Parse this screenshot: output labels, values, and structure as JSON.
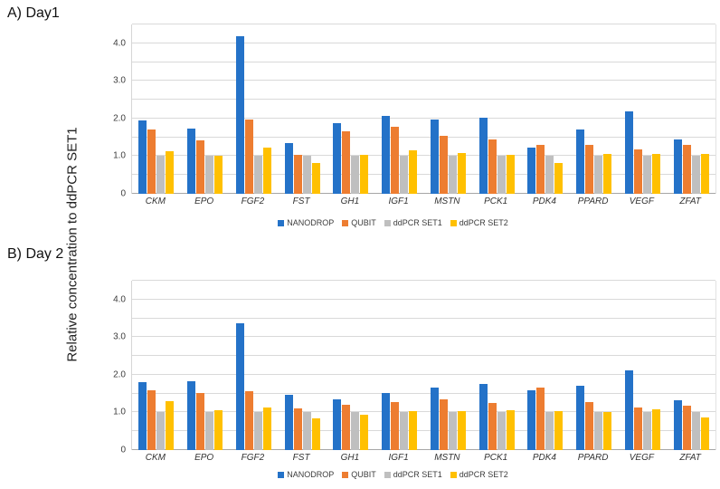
{
  "figure": {
    "y_axis_label": "Relative concentration to ddPCR SET1"
  },
  "colors": {
    "nanodrop": "#2472C8",
    "qubit": "#ED7D31",
    "ddpcr_set1": "#BFBFBF",
    "ddpcr_set2": "#FFC000",
    "gridline": "#D9D9D9",
    "axis_line": "#A6A6A6"
  },
  "chart_data": [
    {
      "type": "bar",
      "panel_label": "A) Day1",
      "title": "",
      "xlabel": "",
      "ylabel": "Relative concentration to ddPCR SET1",
      "ylim": [
        0,
        4.5
      ],
      "gridline_step": 0.5,
      "grid": true,
      "legend_position": "bottom",
      "y_tick_values": [
        0,
        1,
        2,
        3,
        4
      ],
      "y_tick_labels": [
        "0",
        "1.0",
        "2.0",
        "3.0",
        "4.0"
      ],
      "categories": [
        "CKM",
        "EPO",
        "FGF2",
        "FST",
        "GH1",
        "IGF1",
        "MSTN",
        "PCK1",
        "PDK4",
        "PPARD",
        "VEGF",
        "ZFAT"
      ],
      "series": [
        {
          "name": "NANODROP",
          "color_key": "nanodrop",
          "values": [
            1.95,
            1.73,
            4.18,
            1.36,
            1.88,
            2.07,
            1.97,
            2.02,
            1.23,
            1.71,
            2.2,
            1.44
          ]
        },
        {
          "name": "QUBIT",
          "color_key": "qubit",
          "values": [
            1.7,
            1.42,
            1.97,
            1.04,
            1.66,
            1.78,
            1.55,
            1.44,
            1.29,
            1.31,
            1.18,
            1.29
          ]
        },
        {
          "name": "ddPCR SET1",
          "color_key": "ddpcr_set1",
          "values": [
            1.0,
            1.0,
            1.0,
            1.0,
            1.0,
            1.0,
            1.0,
            1.0,
            1.0,
            1.0,
            1.0,
            1.0
          ]
        },
        {
          "name": "ddPCR SET2",
          "color_key": "ddpcr_set2",
          "values": [
            1.12,
            1.0,
            1.22,
            0.82,
            1.03,
            1.16,
            1.08,
            1.04,
            0.82,
            1.05,
            1.06,
            1.07
          ]
        }
      ]
    },
    {
      "type": "bar",
      "panel_label": "B) Day 2",
      "title": "",
      "xlabel": "",
      "ylabel": "Relative concentration to ddPCR SET1",
      "ylim": [
        0,
        4.5
      ],
      "gridline_step": 0.5,
      "grid": true,
      "legend_position": "bottom",
      "y_tick_values": [
        0,
        1,
        2,
        3,
        4
      ],
      "y_tick_labels": [
        "0",
        "1.0",
        "2.0",
        "3.0",
        "4.0"
      ],
      "categories": [
        "CKM",
        "EPO",
        "FGF2",
        "FST",
        "GH1",
        "IGF1",
        "MSTN",
        "PCK1",
        "PDK4",
        "PPARD",
        "VEGF",
        "ZFAT"
      ],
      "series": [
        {
          "name": "NANODROP",
          "color_key": "nanodrop",
          "values": [
            1.81,
            1.84,
            3.36,
            1.48,
            1.36,
            1.52,
            1.67,
            1.75,
            1.6,
            1.71,
            2.11,
            1.32
          ]
        },
        {
          "name": "QUBIT",
          "color_key": "qubit",
          "values": [
            1.58,
            1.51,
            1.57,
            1.11,
            1.21,
            1.28,
            1.34,
            1.25,
            1.66,
            1.28,
            1.14,
            1.18
          ]
        },
        {
          "name": "ddPCR SET1",
          "color_key": "ddpcr_set1",
          "values": [
            1.0,
            1.0,
            1.0,
            1.0,
            1.0,
            1.0,
            1.0,
            1.0,
            1.0,
            1.0,
            1.0,
            1.0
          ]
        },
        {
          "name": "ddPCR SET2",
          "color_key": "ddpcr_set2",
          "values": [
            1.29,
            1.05,
            1.13,
            0.84,
            0.94,
            1.04,
            1.03,
            1.06,
            1.04,
            1.02,
            1.08,
            0.86
          ]
        }
      ]
    }
  ]
}
